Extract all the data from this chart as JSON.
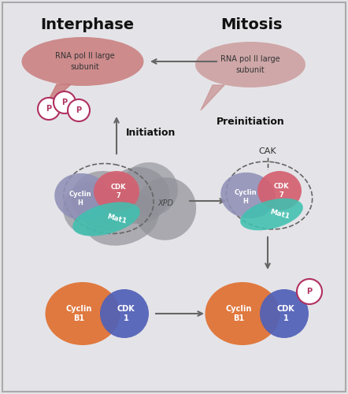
{
  "bg_color": "#e4e4e8",
  "title_left": "Interphase",
  "title_right": "Mitosis",
  "label_initiation": "Initiation",
  "label_preinitiation": "Preinitiation",
  "label_cak": "CAK",
  "rnapol_text": "RNA pol II large\nsubunit",
  "rnapol_left_color": "#c87878",
  "rnapol_right_color": "#c89090",
  "cyclin_h_color": "#9090b8",
  "cdk7_color": "#d46070",
  "mat1_color": "#40c0b0",
  "cyclin_b1_color": "#e07030",
  "cdk1_color": "#5060b8",
  "tfiih_color": "#909098",
  "p_color": "#b03060",
  "arrow_color": "#666666"
}
